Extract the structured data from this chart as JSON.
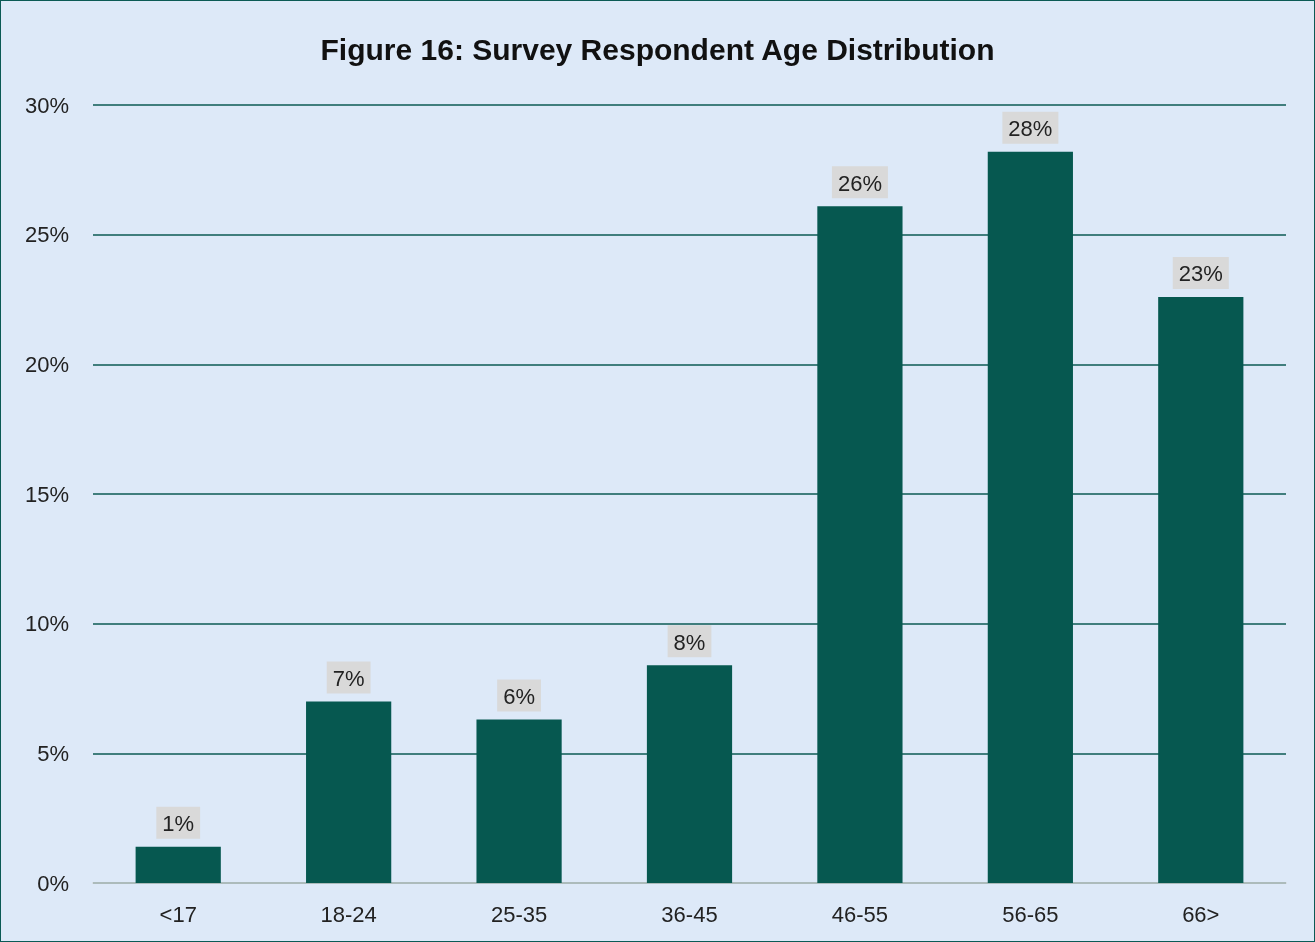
{
  "chart_data": {
    "type": "bar",
    "title": "Figure 16: Survey Respondent Age Distribution",
    "categories": [
      "<17",
      "18-24",
      "25-35",
      "36-45",
      "46-55",
      "56-65",
      "66>"
    ],
    "values": [
      1.4,
      7.0,
      6.3,
      8.4,
      26.1,
      28.2,
      22.6
    ],
    "value_labels": [
      "1%",
      "7%",
      "6%",
      "8%",
      "26%",
      "28%",
      "23%"
    ],
    "color": "#065850",
    "ylim": [
      0,
      30
    ],
    "yticks": [
      {
        "value": 0,
        "label": "0%"
      },
      {
        "value": 5,
        "label": "5%"
      },
      {
        "value": 10,
        "label": "10%"
      },
      {
        "value": 15,
        "label": "15%"
      },
      {
        "value": 20,
        "label": "20%"
      },
      {
        "value": 25,
        "label": "25%"
      },
      {
        "value": 30,
        "label": "30%"
      }
    ],
    "grid": "y"
  }
}
